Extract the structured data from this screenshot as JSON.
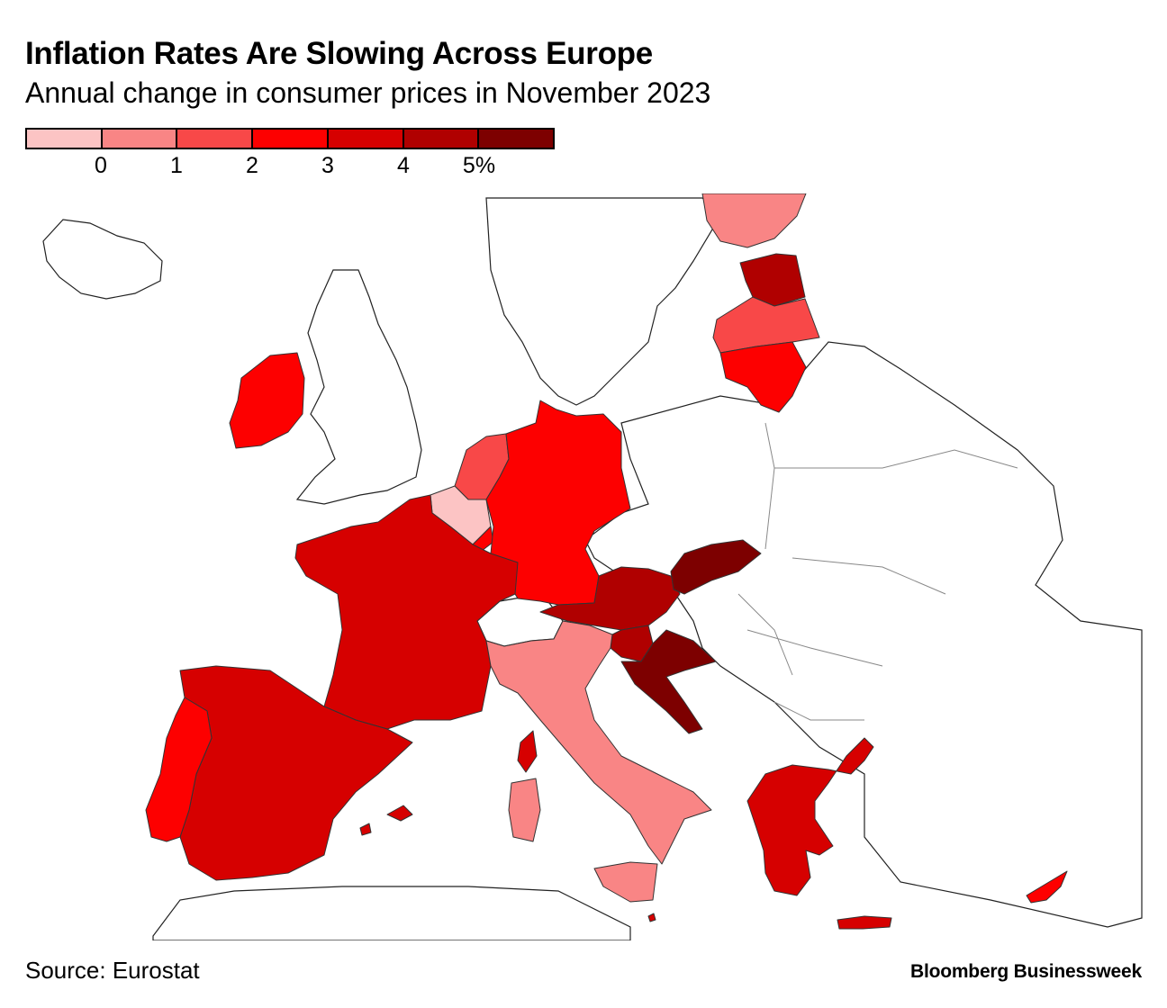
{
  "header": {
    "title": "Inflation Rates Are Slowing Across Europe",
    "subtitle": "Annual change in consumer prices in November 2023"
  },
  "legend": {
    "colors": [
      "#fcc4c4",
      "#f98585",
      "#f84848",
      "#fd0000",
      "#d60000",
      "#b00000",
      "#7d0000"
    ],
    "ticks": [
      "0",
      "1",
      "2",
      "3",
      "4",
      "5%"
    ]
  },
  "map": {
    "no_data_color": "#ffffff",
    "regions": [
      {
        "name": "France",
        "bin": 4
      },
      {
        "name": "Spain",
        "bin": 4
      },
      {
        "name": "Portugal",
        "bin": 3
      },
      {
        "name": "Ireland",
        "bin": 3
      },
      {
        "name": "Belgium",
        "bin": 0
      },
      {
        "name": "Netherlands",
        "bin": 2
      },
      {
        "name": "Luxembourg",
        "bin": 3
      },
      {
        "name": "Germany",
        "bin": 3
      },
      {
        "name": "Austria",
        "bin": 5
      },
      {
        "name": "Slovenia",
        "bin": 5
      },
      {
        "name": "Croatia",
        "bin": 6
      },
      {
        "name": "Slovakia",
        "bin": 6
      },
      {
        "name": "Italy",
        "bin": 1
      },
      {
        "name": "Sardinia",
        "bin": 1
      },
      {
        "name": "Sicily",
        "bin": 1
      },
      {
        "name": "Corsica",
        "bin": 4
      },
      {
        "name": "Balearic Islands",
        "bin": 4
      },
      {
        "name": "Greece",
        "bin": 4
      },
      {
        "name": "Crete",
        "bin": 4
      },
      {
        "name": "Cyprus",
        "bin": 3
      },
      {
        "name": "Finland",
        "bin": 1
      },
      {
        "name": "Estonia",
        "bin": 5
      },
      {
        "name": "Latvia",
        "bin": 2
      },
      {
        "name": "Lithuania",
        "bin": 3
      },
      {
        "name": "Malta",
        "bin": 4
      }
    ]
  },
  "footer": {
    "source": "Source: Eurostat",
    "brand": "Bloomberg Businessweek"
  }
}
